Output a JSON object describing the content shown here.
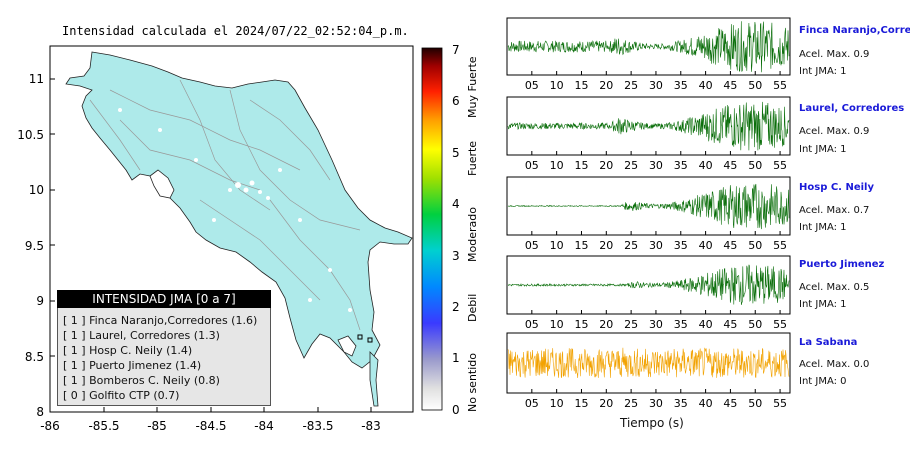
{
  "map": {
    "title": "Intensidad calculada el 2024/07/22_02:52:04_p.m.",
    "x_ticks": [
      "-86",
      "-85.5",
      "-85",
      "-84.5",
      "-84",
      "-83.5",
      "-83"
    ],
    "y_ticks": [
      "11",
      "10.5",
      "10",
      "9.5",
      "9",
      "8.5",
      "8"
    ],
    "land_color": "#aeeaea",
    "border_color": "#000000"
  },
  "colorbar": {
    "ticks": [
      "0",
      "1",
      "2",
      "3",
      "4",
      "5",
      "6",
      "7"
    ],
    "labels": [
      "No sentido",
      "Debil",
      "Moderado",
      "Fuerte",
      "Muy Fuerte"
    ]
  },
  "legend": {
    "title": "INTENSIDAD JMA [0 a 7]",
    "items": [
      "[ 1 ]  Finca Naranjo,Corredores (1.6)",
      "[ 1 ]  Laurel, Corredores (1.3)",
      "[ 1 ]  Hosp C. Neily (1.4)",
      "[ 1 ]  Puerto Jimenez (1.4)",
      "[ 1 ]  Bomberos C. Neily (0.8)",
      "[ 0 ]  Golfito CTP (0.7)"
    ]
  },
  "traces": {
    "x_ticks": [
      "05",
      "10",
      "15",
      "20",
      "25",
      "30",
      "35",
      "40",
      "45",
      "50",
      "55"
    ],
    "xlabel": "Tiempo (s)",
    "stations": [
      {
        "name": "Finca Naranjo,Corredor",
        "acel": "Acel. Max. 0.9",
        "jma": "Int JMA: 1",
        "color": "#0a6e0a",
        "onset": 0.35,
        "pre": 0.22,
        "post": 1.0
      },
      {
        "name": "Laurel, Corredores",
        "acel": "Acel. Max. 0.9",
        "jma": "Int JMA: 1",
        "color": "#0a6e0a",
        "onset": 0.36,
        "pre": 0.12,
        "post": 0.95
      },
      {
        "name": "Hosp C. Neily",
        "acel": "Acel. Max. 0.7",
        "jma": "Int JMA: 1",
        "color": "#0a6e0a",
        "onset": 0.4,
        "pre": 0.02,
        "post": 0.9
      },
      {
        "name": "Puerto Jimenez",
        "acel": "Acel. Max. 0.5",
        "jma": "Int JMA: 1",
        "color": "#0a6e0a",
        "onset": 0.42,
        "pre": 0.04,
        "post": 0.8
      },
      {
        "name": "La Sabana",
        "acel": "Acel. Max. 0.0",
        "jma": "Int JMA: 0",
        "color": "#f2a200",
        "onset": 1.1,
        "pre": 0.55,
        "post": 0.55
      }
    ]
  }
}
